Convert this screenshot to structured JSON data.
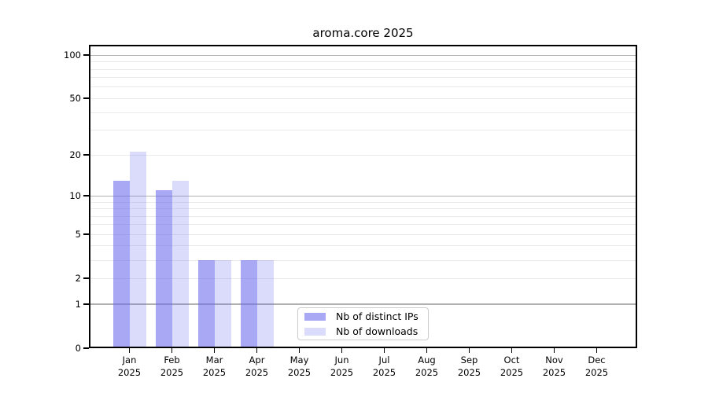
{
  "chart_data": {
    "type": "bar",
    "title": "aroma.core 2025",
    "months": [
      "Jan",
      "Feb",
      "Mar",
      "Apr",
      "May",
      "Jun",
      "Jul",
      "Aug",
      "Sep",
      "Oct",
      "Nov",
      "Dec"
    ],
    "year": "2025",
    "series": [
      {
        "name": "Nb of distinct IPs",
        "color": "rgba(102,102,238,0.57)",
        "values": [
          13,
          11,
          3,
          3,
          0,
          0,
          0,
          0,
          0,
          0,
          0,
          0
        ]
      },
      {
        "name": "Nb of downloads",
        "color": "rgba(102,102,238,0.235)",
        "values": [
          21,
          13,
          3,
          3,
          0,
          0,
          0,
          0,
          0,
          0,
          0,
          0
        ]
      }
    ],
    "y_axis": {
      "scale": "log1p",
      "ticks": [
        100,
        50,
        20,
        10,
        5,
        2,
        1,
        0
      ],
      "major_grid": [
        1,
        10,
        100
      ],
      "minor_grid": [
        2,
        3,
        4,
        5,
        6,
        7,
        8,
        9,
        20,
        30,
        40,
        50,
        60,
        70,
        80,
        90
      ],
      "ylim": [
        0,
        118
      ]
    },
    "colors": {
      "major_grid": "#b0b0b0",
      "minor_grid": "#eaeaea",
      "spine": "#000000",
      "text": "#000000"
    },
    "legend": {
      "position": "lower center"
    },
    "grid": true
  }
}
